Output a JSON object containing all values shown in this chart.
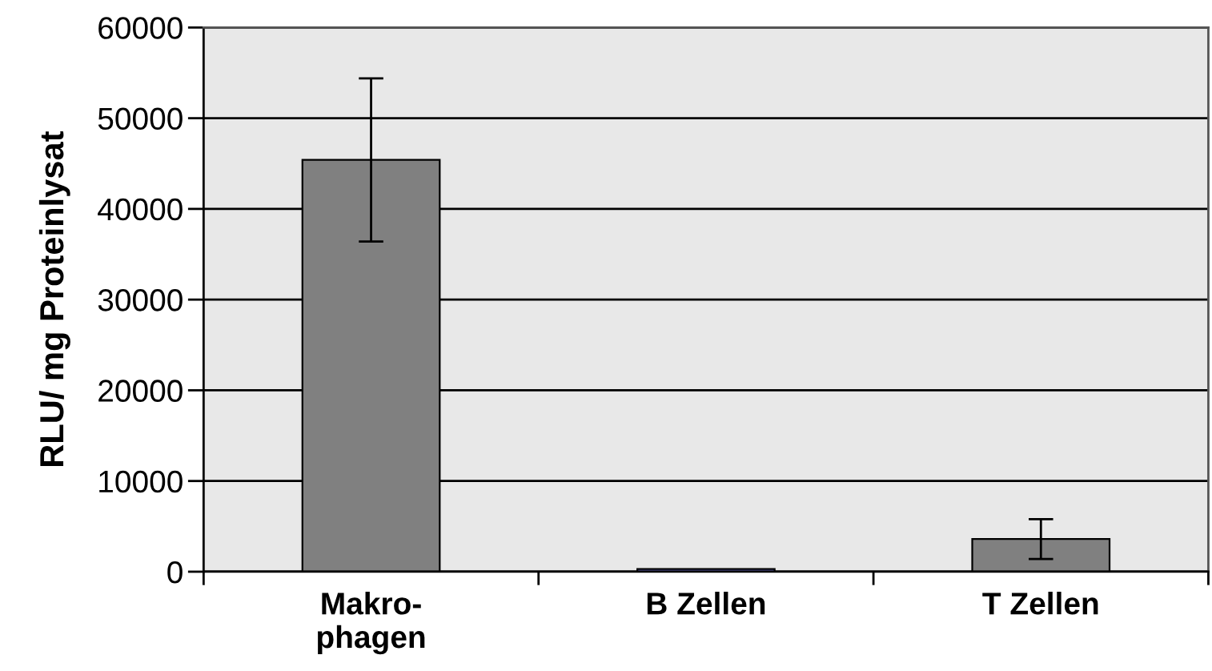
{
  "chart_data": {
    "type": "bar",
    "ylabel": "RLU/ mg Proteinlysat",
    "categories": [
      "Makro-\nphagen",
      "B Zellen",
      "T Zellen"
    ],
    "values": [
      45400,
      300,
      3600
    ],
    "colors": [
      "#808080",
      "#7777dd",
      "#808080"
    ],
    "errors": [
      9000,
      null,
      2200
    ],
    "ylim": [
      0,
      60000
    ],
    "yticks": [
      0,
      10000,
      20000,
      30000,
      40000,
      50000,
      60000
    ],
    "grid": "y"
  }
}
